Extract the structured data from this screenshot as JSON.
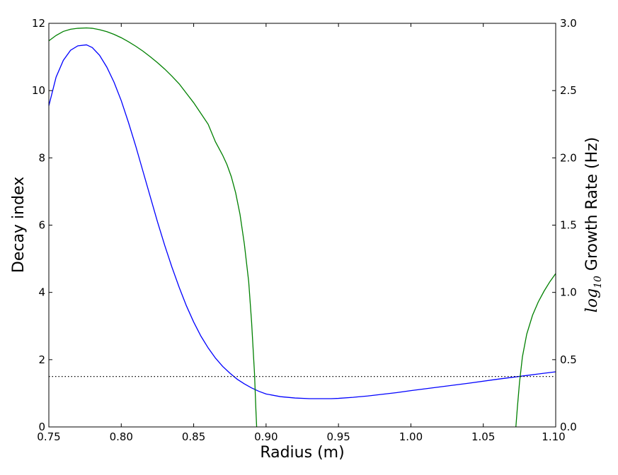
{
  "chart_data": {
    "type": "line",
    "xlabel": "Radius (m)",
    "ylabel_left": "Decay index",
    "ylabel_right_prefix": "log",
    "ylabel_right_sub": "10",
    "ylabel_right_suffix": " Growth Rate (Hz)",
    "xlim": [
      0.75,
      1.1
    ],
    "ylim_left": [
      0,
      12
    ],
    "ylim_right": [
      0,
      3.0
    ],
    "x_ticks": [
      "0.75",
      "0.80",
      "0.85",
      "0.90",
      "0.95",
      "1.00",
      "1.05",
      "1.10"
    ],
    "y_left_ticks": [
      "0",
      "2",
      "4",
      "6",
      "8",
      "10",
      "12"
    ],
    "y_right_ticks": [
      "0.0",
      "0.5",
      "1.0",
      "1.5",
      "2.0",
      "2.5",
      "3.0"
    ],
    "grid": false,
    "series": [
      {
        "axis": "left",
        "color": "#0000ff",
        "style": "solid",
        "points": [
          [
            0.75,
            9.55
          ],
          [
            0.755,
            10.4
          ],
          [
            0.76,
            10.9
          ],
          [
            0.765,
            11.2
          ],
          [
            0.77,
            11.33
          ],
          [
            0.776,
            11.36
          ],
          [
            0.78,
            11.28
          ],
          [
            0.785,
            11.05
          ],
          [
            0.79,
            10.7
          ],
          [
            0.795,
            10.25
          ],
          [
            0.8,
            9.7
          ],
          [
            0.805,
            9.05
          ],
          [
            0.81,
            8.35
          ],
          [
            0.815,
            7.6
          ],
          [
            0.82,
            6.85
          ],
          [
            0.825,
            6.1
          ],
          [
            0.83,
            5.4
          ],
          [
            0.835,
            4.75
          ],
          [
            0.84,
            4.15
          ],
          [
            0.845,
            3.6
          ],
          [
            0.85,
            3.12
          ],
          [
            0.855,
            2.7
          ],
          [
            0.86,
            2.35
          ],
          [
            0.865,
            2.05
          ],
          [
            0.87,
            1.8
          ],
          [
            0.875,
            1.6
          ],
          [
            0.88,
            1.42
          ],
          [
            0.885,
            1.28
          ],
          [
            0.89,
            1.16
          ],
          [
            0.895,
            1.06
          ],
          [
            0.9,
            0.98
          ],
          [
            0.91,
            0.9
          ],
          [
            0.92,
            0.86
          ],
          [
            0.93,
            0.84
          ],
          [
            0.94,
            0.84
          ],
          [
            0.945,
            0.84
          ],
          [
            0.95,
            0.85
          ],
          [
            0.96,
            0.88
          ],
          [
            0.97,
            0.92
          ],
          [
            0.98,
            0.97
          ],
          [
            0.99,
            1.02
          ],
          [
            1.0,
            1.08
          ],
          [
            1.02,
            1.19
          ],
          [
            1.04,
            1.3
          ],
          [
            1.06,
            1.42
          ],
          [
            1.08,
            1.53
          ],
          [
            1.1,
            1.64
          ]
        ]
      },
      {
        "axis": "right",
        "color": "#008000",
        "style": "solid",
        "points": [
          [
            0.75,
            2.87
          ],
          [
            0.755,
            2.91
          ],
          [
            0.76,
            2.94
          ],
          [
            0.765,
            2.956
          ],
          [
            0.77,
            2.963
          ],
          [
            0.776,
            2.966
          ],
          [
            0.78,
            2.963
          ],
          [
            0.785,
            2.953
          ],
          [
            0.79,
            2.938
          ],
          [
            0.795,
            2.918
          ],
          [
            0.8,
            2.893
          ],
          [
            0.805,
            2.863
          ],
          [
            0.81,
            2.83
          ],
          [
            0.815,
            2.793
          ],
          [
            0.82,
            2.752
          ],
          [
            0.825,
            2.708
          ],
          [
            0.83,
            2.66
          ],
          [
            0.835,
            2.607
          ],
          [
            0.84,
            2.55
          ],
          [
            0.845,
            2.48
          ],
          [
            0.85,
            2.41
          ],
          [
            0.855,
            2.33
          ],
          [
            0.86,
            2.25
          ],
          [
            0.865,
            2.12
          ],
          [
            0.87,
            2.02
          ],
          [
            0.873,
            1.95
          ],
          [
            0.876,
            1.86
          ],
          [
            0.879,
            1.74
          ],
          [
            0.882,
            1.58
          ],
          [
            0.885,
            1.36
          ],
          [
            0.888,
            1.08
          ],
          [
            0.89,
            0.78
          ],
          [
            0.892,
            0.4
          ],
          [
            0.893,
            0.12
          ],
          [
            0.8935,
            0.0
          ]
        ]
      },
      {
        "axis": "right",
        "color": "#008000",
        "style": "solid",
        "points": [
          [
            1.0725,
            0.0
          ],
          [
            1.0735,
            0.14
          ],
          [
            1.075,
            0.33
          ],
          [
            1.077,
            0.52
          ],
          [
            1.08,
            0.69
          ],
          [
            1.084,
            0.83
          ],
          [
            1.088,
            0.93
          ],
          [
            1.092,
            1.01
          ],
          [
            1.096,
            1.08
          ],
          [
            1.1,
            1.14
          ]
        ]
      },
      {
        "axis": "left",
        "color": "#000000",
        "style": "dotted",
        "points": [
          [
            0.75,
            1.5
          ],
          [
            1.1,
            1.5
          ]
        ]
      }
    ]
  }
}
